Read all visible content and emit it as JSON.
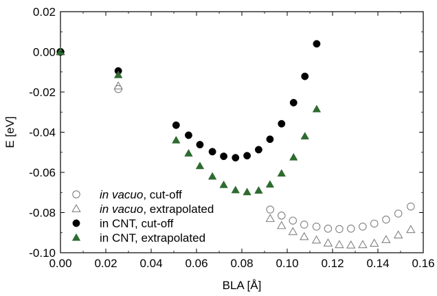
{
  "chart_data": {
    "type": "scatter",
    "xlabel": "BLA [Å]",
    "ylabel": "E [eV]",
    "xlim": [
      0.0,
      0.16
    ],
    "ylim": [
      -0.1,
      0.02
    ],
    "x_ticks": [
      "0.00",
      "0.02",
      "0.04",
      "0.06",
      "0.08",
      "0.10",
      "0.12",
      "0.14",
      "0.16"
    ],
    "y_ticks": [
      "0.02",
      "0.00",
      "-0.02",
      "-0.04",
      "-0.06",
      "-0.08",
      "-0.10"
    ],
    "grid": false,
    "legend_position": "bottom-left",
    "series": [
      {
        "name": "in vacuo, cut-off",
        "name_italic": "in vacuo",
        "name_rest": ", cut-off",
        "marker": "open-circle",
        "color": "#808080",
        "points": [
          [
            0.0,
            0.0
          ],
          [
            0.0255,
            -0.0185
          ],
          [
            0.0925,
            -0.0785
          ],
          [
            0.0975,
            -0.0815
          ],
          [
            0.1025,
            -0.084
          ],
          [
            0.1075,
            -0.086
          ],
          [
            0.1129,
            -0.087
          ],
          [
            0.118,
            -0.088
          ],
          [
            0.123,
            -0.0882
          ],
          [
            0.1281,
            -0.088
          ],
          [
            0.1333,
            -0.087
          ],
          [
            0.1384,
            -0.0855
          ],
          [
            0.1436,
            -0.0835
          ],
          [
            0.149,
            -0.0805
          ],
          [
            0.1545,
            -0.077
          ]
        ]
      },
      {
        "name": "in vacuo, extrapolated",
        "name_italic": "in vacuo",
        "name_rest": ", extrapolated",
        "marker": "open-triangle",
        "color": "#808080",
        "points": [
          [
            0.0,
            0.0
          ],
          [
            0.0255,
            -0.017
          ],
          [
            0.0925,
            -0.083
          ],
          [
            0.0975,
            -0.0865
          ],
          [
            0.1025,
            -0.0895
          ],
          [
            0.1075,
            -0.092
          ],
          [
            0.1129,
            -0.0937
          ],
          [
            0.118,
            -0.0952
          ],
          [
            0.123,
            -0.096
          ],
          [
            0.1281,
            -0.0962
          ],
          [
            0.1333,
            -0.096
          ],
          [
            0.1384,
            -0.0953
          ],
          [
            0.1436,
            -0.0935
          ],
          [
            0.149,
            -0.0912
          ],
          [
            0.1545,
            -0.0885
          ]
        ]
      },
      {
        "name": "in CNT, cut-off",
        "name_italic": "",
        "name_rest": "in CNT, cut-off",
        "marker": "filled-circle",
        "color": "#000000",
        "points": [
          [
            0.0,
            0.0
          ],
          [
            0.0255,
            -0.0095
          ],
          [
            0.051,
            -0.0365
          ],
          [
            0.0565,
            -0.0415
          ],
          [
            0.0615,
            -0.0462
          ],
          [
            0.067,
            -0.0497
          ],
          [
            0.072,
            -0.052
          ],
          [
            0.0772,
            -0.0527
          ],
          [
            0.0823,
            -0.0517
          ],
          [
            0.0874,
            -0.0487
          ],
          [
            0.0924,
            -0.0435
          ],
          [
            0.0975,
            -0.0358
          ],
          [
            0.1028,
            -0.0253
          ],
          [
            0.1078,
            -0.0122
          ],
          [
            0.113,
            0.004
          ]
        ]
      },
      {
        "name": "in CNT, extrapolated",
        "name_italic": "",
        "name_rest": "in CNT, extrapolated",
        "marker": "filled-triangle",
        "color": "#2e6b30",
        "points": [
          [
            0.0,
            0.0
          ],
          [
            0.0255,
            -0.0115
          ],
          [
            0.051,
            -0.044
          ],
          [
            0.0565,
            -0.0505
          ],
          [
            0.0615,
            -0.0568
          ],
          [
            0.067,
            -0.062
          ],
          [
            0.072,
            -0.0662
          ],
          [
            0.0772,
            -0.0688
          ],
          [
            0.0823,
            -0.0698
          ],
          [
            0.0874,
            -0.069
          ],
          [
            0.0924,
            -0.066
          ],
          [
            0.0975,
            -0.0605
          ],
          [
            0.1028,
            -0.0525
          ],
          [
            0.1078,
            -0.042
          ],
          [
            0.113,
            -0.0285
          ]
        ]
      }
    ]
  }
}
